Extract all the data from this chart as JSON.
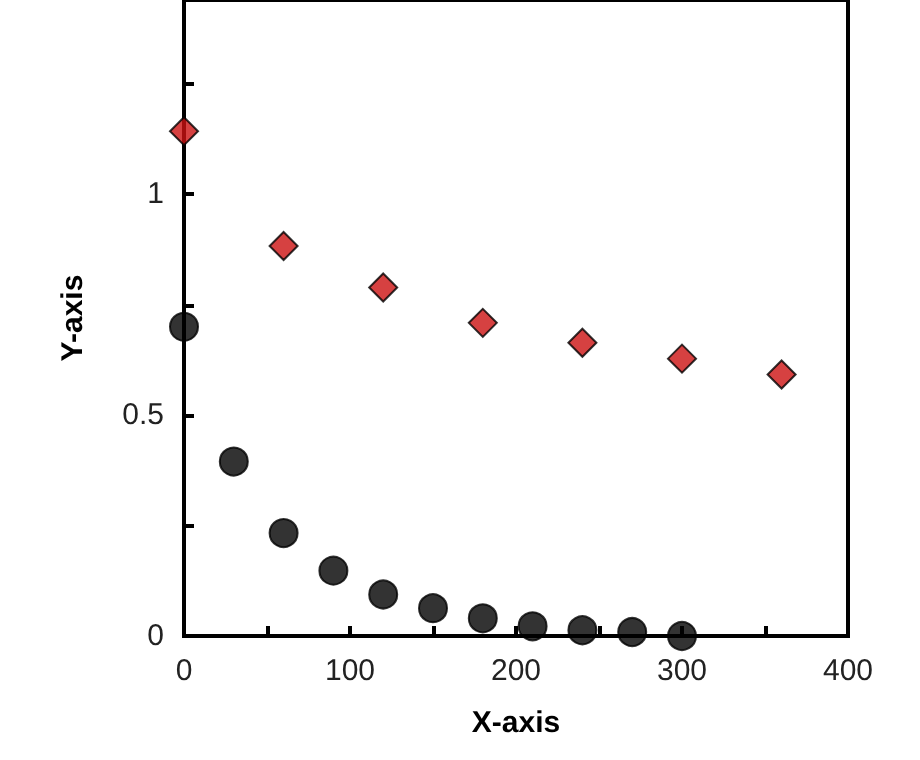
{
  "chart_data": {
    "type": "scatter",
    "xlabel": "X-axis",
    "ylabel": "Y-axis",
    "xlim": [
      0,
      400
    ],
    "ylim": [
      0,
      1.44
    ],
    "xticks": [
      0,
      {
        "value": 50,
        "label": null
      },
      100,
      {
        "value": 150,
        "label": null
      },
      200,
      {
        "value": 250,
        "label": null
      },
      300,
      {
        "value": 350,
        "label": null
      },
      400
    ],
    "yticks": [
      0,
      {
        "value": 0.25,
        "label": null
      },
      0.5,
      {
        "value": 0.75,
        "label": null
      },
      1,
      {
        "value": 1.25,
        "label": null
      }
    ],
    "grid": false,
    "series": [
      {
        "color": "#000000",
        "marker": "circle",
        "x": [
          0,
          30,
          60,
          90,
          120,
          150,
          180,
          210,
          240,
          270,
          300
        ],
        "values": [
          0.7,
          0.395,
          0.233,
          0.148,
          0.094,
          0.063,
          0.04,
          0.022,
          0.013,
          0.009,
          0.0
        ]
      },
      {
        "color": "#cc1111",
        "marker": "diamond",
        "x": [
          0,
          60,
          120,
          180,
          240,
          300,
          360
        ],
        "values": [
          1.143,
          0.883,
          0.789,
          0.709,
          0.664,
          0.628,
          0.592
        ]
      }
    ]
  }
}
